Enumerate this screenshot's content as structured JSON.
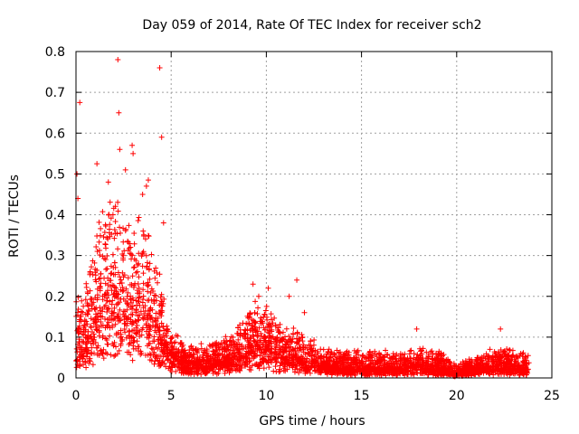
{
  "chart_data": {
    "type": "scatter",
    "title": "Day 059 of 2014, Rate Of TEC Index for receiver sch2",
    "xlabel": "GPS time / hours",
    "ylabel": "ROTI / TECUs",
    "xlim": [
      0,
      25
    ],
    "ylim": [
      0,
      0.8
    ],
    "xticks": [
      0,
      5,
      10,
      15,
      20,
      25
    ],
    "yticks": [
      0,
      0.1,
      0.2,
      0.3,
      0.4,
      0.5,
      0.6,
      0.7,
      0.8
    ],
    "xtick_labels": [
      "0",
      "5",
      "10",
      "15",
      "20",
      "25"
    ],
    "ytick_labels": [
      "0",
      "0.1",
      "0.2",
      "0.3",
      "0.4",
      "0.5",
      "0.6",
      "0.7",
      "0.8"
    ],
    "grid": true,
    "marker": "+",
    "color": "#ff0000",
    "series": [
      {
        "name": "ROTI",
        "envelope": [
          {
            "x": 0.0,
            "base": 0.06,
            "spread": 0.12
          },
          {
            "x": 0.5,
            "base": 0.07,
            "spread": 0.15
          },
          {
            "x": 1.0,
            "base": 0.1,
            "spread": 0.2
          },
          {
            "x": 1.5,
            "base": 0.15,
            "spread": 0.25
          },
          {
            "x": 2.0,
            "base": 0.18,
            "spread": 0.24
          },
          {
            "x": 2.5,
            "base": 0.17,
            "spread": 0.25
          },
          {
            "x": 3.0,
            "base": 0.15,
            "spread": 0.22
          },
          {
            "x": 3.5,
            "base": 0.14,
            "spread": 0.22
          },
          {
            "x": 4.0,
            "base": 0.12,
            "spread": 0.2
          },
          {
            "x": 4.5,
            "base": 0.09,
            "spread": 0.12
          },
          {
            "x": 5.0,
            "base": 0.05,
            "spread": 0.06
          },
          {
            "x": 6.0,
            "base": 0.03,
            "spread": 0.04
          },
          {
            "x": 7.0,
            "base": 0.03,
            "spread": 0.05
          },
          {
            "x": 8.0,
            "base": 0.04,
            "spread": 0.06
          },
          {
            "x": 9.0,
            "base": 0.06,
            "spread": 0.09
          },
          {
            "x": 9.5,
            "base": 0.08,
            "spread": 0.11
          },
          {
            "x": 10.0,
            "base": 0.07,
            "spread": 0.09
          },
          {
            "x": 11.0,
            "base": 0.05,
            "spread": 0.07
          },
          {
            "x": 12.0,
            "base": 0.04,
            "spread": 0.06
          },
          {
            "x": 13.0,
            "base": 0.03,
            "spread": 0.04
          },
          {
            "x": 14.0,
            "base": 0.02,
            "spread": 0.04
          },
          {
            "x": 15.0,
            "base": 0.02,
            "spread": 0.04
          },
          {
            "x": 16.0,
            "base": 0.02,
            "spread": 0.04
          },
          {
            "x": 17.0,
            "base": 0.02,
            "spread": 0.04
          },
          {
            "x": 18.0,
            "base": 0.03,
            "spread": 0.04
          },
          {
            "x": 19.0,
            "base": 0.02,
            "spread": 0.04
          },
          {
            "x": 20.0,
            "base": 0.01,
            "spread": 0.02
          },
          {
            "x": 21.0,
            "base": 0.02,
            "spread": 0.03
          },
          {
            "x": 22.0,
            "base": 0.03,
            "spread": 0.04
          },
          {
            "x": 23.0,
            "base": 0.02,
            "spread": 0.05
          },
          {
            "x": 23.8,
            "base": 0.02,
            "spread": 0.03
          }
        ],
        "outliers": [
          {
            "x": 0.2,
            "y": 0.675
          },
          {
            "x": 0.05,
            "y": 0.5
          },
          {
            "x": 0.1,
            "y": 0.44
          },
          {
            "x": 1.1,
            "y": 0.525
          },
          {
            "x": 1.7,
            "y": 0.48
          },
          {
            "x": 2.2,
            "y": 0.78
          },
          {
            "x": 2.25,
            "y": 0.65
          },
          {
            "x": 2.3,
            "y": 0.56
          },
          {
            "x": 2.6,
            "y": 0.51
          },
          {
            "x": 2.95,
            "y": 0.57
          },
          {
            "x": 3.0,
            "y": 0.55
          },
          {
            "x": 3.5,
            "y": 0.45
          },
          {
            "x": 3.7,
            "y": 0.47
          },
          {
            "x": 3.8,
            "y": 0.485
          },
          {
            "x": 4.4,
            "y": 0.76
          },
          {
            "x": 4.5,
            "y": 0.59
          },
          {
            "x": 4.6,
            "y": 0.38
          },
          {
            "x": 9.3,
            "y": 0.23
          },
          {
            "x": 9.6,
            "y": 0.2
          },
          {
            "x": 10.1,
            "y": 0.22
          },
          {
            "x": 11.2,
            "y": 0.2
          },
          {
            "x": 11.6,
            "y": 0.24
          },
          {
            "x": 12.0,
            "y": 0.16
          },
          {
            "x": 17.9,
            "y": 0.12
          },
          {
            "x": 22.3,
            "y": 0.12
          }
        ]
      }
    ]
  }
}
